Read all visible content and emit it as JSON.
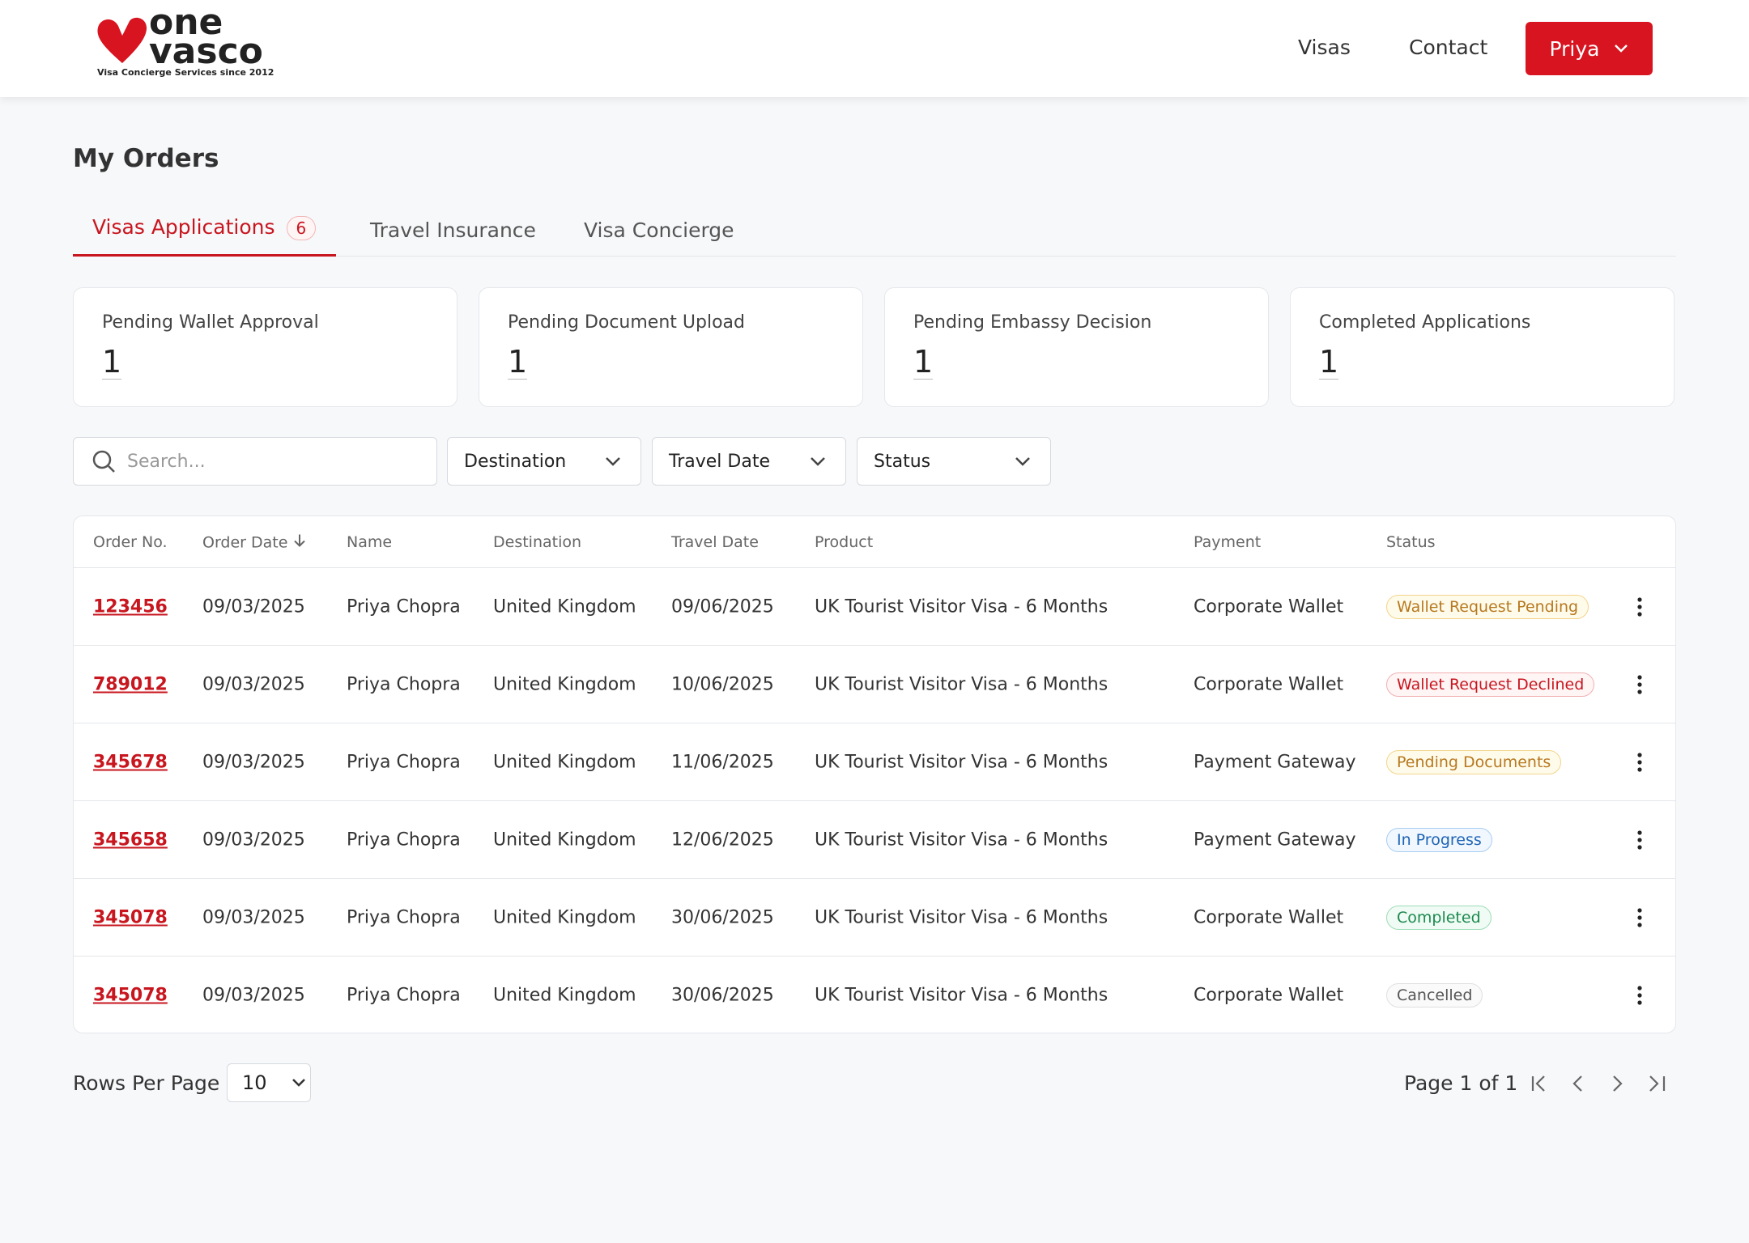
{
  "header": {
    "logo": {
      "line1": "one",
      "line2": "vasco",
      "tagline": "Visa Concierge Services since 2012"
    },
    "nav": [
      "Visas",
      "Contact"
    ],
    "user": "Priya"
  },
  "page_title": "My Orders",
  "tabs": [
    {
      "label": "Visas Applications",
      "count": 6
    },
    {
      "label": "Travel Insurance"
    },
    {
      "label": "Visa Concierge"
    }
  ],
  "summary": [
    {
      "label": "Pending Wallet Approval",
      "value": 1
    },
    {
      "label": "Pending Document Upload",
      "value": 1
    },
    {
      "label": "Pending Embassy Decision",
      "value": 1
    },
    {
      "label": "Completed Applications",
      "value": 1
    }
  ],
  "filters": {
    "search_placeholder": "Search...",
    "dropdowns": [
      "Destination",
      "Travel Date",
      "Status"
    ]
  },
  "table": {
    "columns": [
      "Order No.",
      "Order Date",
      "Name",
      "Destination",
      "Travel Date",
      "Product",
      "Payment",
      "Status"
    ],
    "rows": [
      [
        "123456",
        "09/03/2025",
        "Priya Chopra",
        "United Kingdom",
        "09/06/2025",
        "UK Tourist Visitor Visa - 6 Months",
        "Corporate Wallet",
        "Wallet Request Pending"
      ],
      [
        "789012",
        "09/03/2025",
        "Priya Chopra",
        "United Kingdom",
        "10/06/2025",
        "UK Tourist Visitor Visa - 6 Months",
        "Corporate Wallet",
        "Wallet Request Declined"
      ],
      [
        "345678",
        "09/03/2025",
        "Priya Chopra",
        "United Kingdom",
        "11/06/2025",
        "UK Tourist Visitor Visa - 6 Months",
        "Payment Gateway",
        "Pending Documents"
      ],
      [
        "345658",
        "09/03/2025",
        "Priya Chopra",
        "United Kingdom",
        "12/06/2025",
        "UK Tourist Visitor Visa - 6 Months",
        "Payment Gateway",
        "In Progress"
      ],
      [
        "345078",
        "09/03/2025",
        "Priya Chopra",
        "United Kingdom",
        "30/06/2025",
        "UK Tourist Visitor Visa - 6 Months",
        "Corporate Wallet",
        "Completed"
      ],
      [
        "345078",
        "09/03/2025",
        "Priya Chopra",
        "United Kingdom",
        "30/06/2025",
        "UK Tourist Visitor Visa - 6 Months",
        "Corporate Wallet",
        "Cancelled"
      ]
    ]
  },
  "pagination": {
    "rows_per_page_label": "Rows Per Page",
    "rows_per_page": 10,
    "page_info": "Page 1 of 1"
  }
}
